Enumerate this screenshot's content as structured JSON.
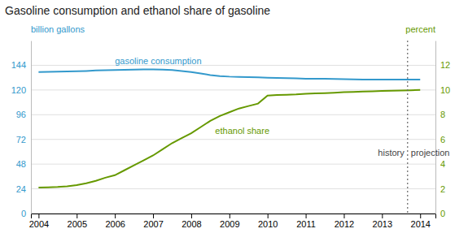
{
  "chart_data": {
    "type": "line",
    "title": "Gasoline consumption and ethanol share of gasoline",
    "ylabel": "billion gallons",
    "y2label": "percent",
    "x": [
      2004,
      2004.25,
      2004.5,
      2004.75,
      2005,
      2005.25,
      2005.5,
      2005.75,
      2006,
      2006.25,
      2006.5,
      2006.75,
      2007,
      2007.25,
      2007.5,
      2007.75,
      2008,
      2008.25,
      2008.5,
      2008.75,
      2009,
      2009.25,
      2009.5,
      2009.75,
      2010,
      2010.25,
      2010.5,
      2010.75,
      2011,
      2011.25,
      2011.5,
      2011.75,
      2012,
      2012.25,
      2012.5,
      2012.75,
      2013,
      2013.25,
      2013.5,
      2013.75,
      2014
    ],
    "series": [
      {
        "name": "gasoline consumption",
        "color": "#3399cc",
        "values": [
          137.5,
          137.6,
          137.8,
          138.0,
          138.2,
          138.5,
          139.0,
          139.3,
          139.5,
          139.7,
          139.8,
          140.0,
          140.0,
          139.8,
          139.5,
          138.5,
          137.5,
          136.0,
          134.5,
          133.5,
          133.0,
          132.8,
          132.5,
          132.3,
          132.0,
          131.8,
          131.5,
          131.3,
          131.0,
          131.0,
          131.0,
          130.8,
          130.5,
          130.3,
          130.2,
          130.2,
          130.2,
          130.2,
          130.2,
          130.2,
          130.2
        ]
      },
      {
        "name": "ethanol share",
        "color": "#669900",
        "axis": "y2",
        "values": [
          2.1,
          2.12,
          2.15,
          2.2,
          2.3,
          2.45,
          2.65,
          2.9,
          3.1,
          3.5,
          3.9,
          4.3,
          4.7,
          5.2,
          5.7,
          6.1,
          6.5,
          7.0,
          7.5,
          7.9,
          8.2,
          8.5,
          8.7,
          8.9,
          9.55,
          9.6,
          9.62,
          9.65,
          9.7,
          9.72,
          9.75,
          9.78,
          9.82,
          9.85,
          9.88,
          9.9,
          9.92,
          9.94,
          9.96,
          9.98,
          10.0
        ]
      }
    ],
    "xlim": [
      2003.8,
      2014.4
    ],
    "xticks": [
      2004,
      2005,
      2006,
      2007,
      2008,
      2009,
      2010,
      2011,
      2012,
      2013,
      2014
    ],
    "ylim": [
      0,
      168
    ],
    "yticks": [
      0,
      24,
      48,
      72,
      96,
      120,
      144
    ],
    "y2lim": [
      0,
      14
    ],
    "y2ticks": [
      0,
      2,
      4,
      6,
      8,
      10,
      12
    ],
    "grid": true,
    "vline_x": 2013.67,
    "vline_labels": [
      "history",
      "projection"
    ]
  }
}
